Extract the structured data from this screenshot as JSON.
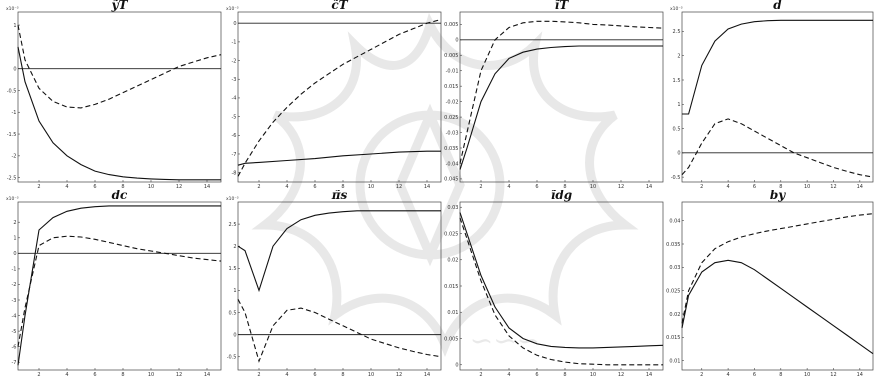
{
  "chart_data": [
    {
      "type": "line",
      "title": "ỹT",
      "exponent": "x10⁻³",
      "xticks": [
        2,
        4,
        6,
        8,
        10,
        12,
        14
      ],
      "yticks": [
        1,
        0,
        -0.5,
        -1,
        -1.5,
        -2,
        -2.5
      ],
      "ylim": [
        -2.6,
        1.3
      ],
      "xlim": [
        0.5,
        15
      ],
      "zero_line": 0,
      "series": [
        {
          "style": "solid",
          "x": [
            0.5,
            1,
            2,
            3,
            4,
            5,
            6,
            7,
            8,
            9,
            10,
            11,
            12,
            13,
            14,
            15
          ],
          "y": [
            0.5,
            -0.3,
            -1.2,
            -1.7,
            -2.0,
            -2.2,
            -2.35,
            -2.43,
            -2.48,
            -2.51,
            -2.53,
            -2.54,
            -2.55,
            -2.55,
            -2.55,
            -2.55
          ]
        },
        {
          "style": "dashed",
          "x": [
            0.5,
            1,
            2,
            3,
            4,
            5,
            6,
            7,
            8,
            9,
            10,
            11,
            12,
            13,
            14,
            15
          ],
          "y": [
            1.0,
            0.2,
            -0.45,
            -0.75,
            -0.88,
            -0.9,
            -0.82,
            -0.7,
            -0.55,
            -0.4,
            -0.25,
            -0.1,
            0.05,
            0.15,
            0.25,
            0.32
          ]
        }
      ]
    },
    {
      "type": "line",
      "title": "c̃T",
      "exponent": "x10⁻³",
      "xticks": [
        2,
        4,
        6,
        8,
        10,
        12,
        14
      ],
      "yticks": [
        0,
        -1,
        -2,
        -3,
        -4,
        -5,
        -6,
        -7,
        -8
      ],
      "ylim": [
        -8.5,
        0.6
      ],
      "xlim": [
        0.5,
        15
      ],
      "zero_line": 0,
      "series": [
        {
          "style": "solid",
          "x": [
            0.5,
            1,
            2,
            4,
            6,
            8,
            10,
            12,
            14,
            15
          ],
          "y": [
            -7.6,
            -7.5,
            -7.45,
            -7.35,
            -7.25,
            -7.1,
            -7.0,
            -6.9,
            -6.85,
            -6.85
          ]
        },
        {
          "style": "dashed",
          "x": [
            0.5,
            1,
            2,
            3,
            4,
            5,
            6,
            7,
            8,
            9,
            10,
            11,
            12,
            13,
            14,
            15
          ],
          "y": [
            -8.2,
            -7.5,
            -6.3,
            -5.3,
            -4.5,
            -3.8,
            -3.2,
            -2.7,
            -2.2,
            -1.8,
            -1.4,
            -1.0,
            -0.6,
            -0.3,
            0.0,
            0.2
          ]
        }
      ]
    },
    {
      "type": "line",
      "title": "ĩT",
      "exponent": "",
      "xticks": [
        2,
        4,
        6,
        8,
        10,
        12,
        14
      ],
      "yticks": [
        0.005,
        0,
        -0.005,
        -0.01,
        -0.015,
        -0.02,
        -0.025,
        -0.03,
        -0.035,
        -0.04,
        -0.045
      ],
      "ylim": [
        -0.046,
        0.009
      ],
      "xlim": [
        0.5,
        15
      ],
      "zero_line": 0,
      "series": [
        {
          "style": "solid",
          "x": [
            0.5,
            1,
            2,
            3,
            4,
            5,
            6,
            7,
            8,
            9,
            10,
            11,
            12,
            13,
            14,
            15
          ],
          "y": [
            -0.042,
            -0.035,
            -0.02,
            -0.011,
            -0.006,
            -0.004,
            -0.003,
            -0.0025,
            -0.0022,
            -0.002,
            -0.002,
            -0.002,
            -0.002,
            -0.002,
            -0.002,
            -0.002
          ]
        },
        {
          "style": "dashed",
          "x": [
            0.5,
            1,
            2,
            3,
            4,
            5,
            6,
            7,
            8,
            9,
            10,
            11,
            12,
            13,
            14,
            15
          ],
          "y": [
            -0.04,
            -0.03,
            -0.01,
            0.0,
            0.004,
            0.0055,
            0.006,
            0.006,
            0.0058,
            0.0055,
            0.005,
            0.0048,
            0.0045,
            0.0042,
            0.004,
            0.0038
          ]
        }
      ]
    },
    {
      "type": "line",
      "title": "d̃",
      "exponent": "x10⁻³",
      "xticks": [
        2,
        4,
        6,
        8,
        10,
        12,
        14
      ],
      "yticks": [
        2.5,
        2,
        1.5,
        1,
        0.5,
        0,
        -0.5
      ],
      "ylim": [
        -0.6,
        2.9
      ],
      "xlim": [
        0.5,
        15
      ],
      "zero_line": 0,
      "series": [
        {
          "style": "solid",
          "x": [
            0.5,
            1,
            2,
            3,
            4,
            5,
            6,
            7,
            8,
            9,
            10,
            11,
            12,
            13,
            14,
            15
          ],
          "y": [
            0.8,
            0.8,
            1.8,
            2.3,
            2.55,
            2.65,
            2.7,
            2.72,
            2.73,
            2.73,
            2.73,
            2.73,
            2.73,
            2.73,
            2.73,
            2.73
          ]
        },
        {
          "style": "dashed",
          "x": [
            0.5,
            1,
            2,
            3,
            4,
            5,
            6,
            7,
            8,
            9,
            10,
            11,
            12,
            13,
            14,
            15
          ],
          "y": [
            -0.45,
            -0.3,
            0.2,
            0.6,
            0.7,
            0.6,
            0.45,
            0.3,
            0.15,
            0.0,
            -0.1,
            -0.2,
            -0.3,
            -0.38,
            -0.45,
            -0.5
          ]
        }
      ]
    },
    {
      "type": "line",
      "title": "dc",
      "exponent": "x10⁻³",
      "xticks": [
        2,
        4,
        6,
        8,
        10,
        12,
        14
      ],
      "yticks": [
        2,
        1,
        0,
        -1,
        -2,
        -3,
        -4,
        -5,
        -6,
        -7
      ],
      "ylim": [
        -7.5,
        3.3
      ],
      "xlim": [
        0.5,
        15
      ],
      "zero_line": 0,
      "series": [
        {
          "style": "solid",
          "x": [
            0.5,
            1,
            2,
            3,
            4,
            5,
            6,
            7,
            8,
            9,
            10,
            11,
            12,
            13,
            14,
            15
          ],
          "y": [
            -7.2,
            -4.0,
            1.5,
            2.3,
            2.7,
            2.9,
            3.0,
            3.05,
            3.05,
            3.05,
            3.05,
            3.05,
            3.05,
            3.05,
            3.05,
            3.05
          ]
        },
        {
          "style": "dashed",
          "x": [
            0.5,
            1,
            2,
            3,
            4,
            5,
            6,
            7,
            8,
            9,
            10,
            11,
            12,
            13,
            14,
            15
          ],
          "y": [
            -6.0,
            -3.5,
            0.5,
            1.0,
            1.1,
            1.05,
            0.9,
            0.7,
            0.5,
            0.3,
            0.15,
            0.0,
            -0.15,
            -0.3,
            -0.4,
            -0.5
          ]
        }
      ]
    },
    {
      "type": "line",
      "title": "π̃s",
      "exponent": "x10⁻³",
      "xticks": [
        2,
        4,
        6,
        8,
        10,
        12,
        14
      ],
      "yticks": [
        2.5,
        2,
        1.5,
        1,
        0.5,
        0,
        -0.5
      ],
      "ylim": [
        -0.8,
        3.0
      ],
      "xlim": [
        0.5,
        15
      ],
      "zero_line": 0,
      "series": [
        {
          "style": "solid",
          "x": [
            0.5,
            1,
            2,
            3,
            4,
            5,
            6,
            7,
            8,
            9,
            10,
            11,
            12,
            13,
            14,
            15
          ],
          "y": [
            2.0,
            1.9,
            1.0,
            2.0,
            2.4,
            2.6,
            2.7,
            2.75,
            2.78,
            2.8,
            2.8,
            2.8,
            2.8,
            2.8,
            2.8,
            2.8
          ]
        },
        {
          "style": "dashed",
          "x": [
            0.5,
            1,
            2,
            3,
            4,
            5,
            6,
            7,
            8,
            9,
            10,
            11,
            12,
            13,
            14,
            15
          ],
          "y": [
            0.8,
            0.5,
            -0.6,
            0.2,
            0.55,
            0.6,
            0.5,
            0.35,
            0.2,
            0.05,
            -0.1,
            -0.2,
            -0.3,
            -0.38,
            -0.45,
            -0.5
          ]
        }
      ]
    },
    {
      "type": "line",
      "title": "ĩdg",
      "exponent": "",
      "xticks": [
        2,
        4,
        6,
        8,
        10,
        12,
        14
      ],
      "yticks": [
        0.03,
        0.025,
        0.02,
        0.015,
        0.01,
        0.005,
        0
      ],
      "ylim": [
        -0.001,
        0.031
      ],
      "xlim": [
        0.5,
        15
      ],
      "zero_line": null,
      "series": [
        {
          "style": "solid",
          "x": [
            0.5,
            1,
            2,
            3,
            4,
            5,
            6,
            7,
            8,
            9,
            10,
            11,
            12,
            13,
            14,
            15
          ],
          "y": [
            0.029,
            0.025,
            0.017,
            0.011,
            0.007,
            0.005,
            0.004,
            0.0035,
            0.0033,
            0.0032,
            0.0032,
            0.0033,
            0.0034,
            0.0035,
            0.0036,
            0.0037
          ]
        },
        {
          "style": "dashed",
          "x": [
            0.5,
            1,
            2,
            3,
            4,
            5,
            6,
            7,
            8,
            9,
            10,
            11,
            12,
            13,
            14,
            15
          ],
          "y": [
            0.028,
            0.024,
            0.016,
            0.0095,
            0.0055,
            0.0032,
            0.0018,
            0.001,
            0.0005,
            0.0002,
            0.0001,
            0.0,
            0.0,
            0.0,
            0.0,
            0.0
          ]
        }
      ]
    },
    {
      "type": "line",
      "title": "by",
      "exponent": "",
      "xticks": [
        2,
        4,
        6,
        8,
        10,
        12,
        14
      ],
      "yticks": [
        0.04,
        0.035,
        0.03,
        0.025,
        0.02,
        0.015,
        0.01
      ],
      "ylim": [
        0.008,
        0.044
      ],
      "xlim": [
        0.5,
        15
      ],
      "zero_line": null,
      "series": [
        {
          "style": "solid",
          "x": [
            0.5,
            1,
            2,
            3,
            4,
            5,
            6,
            7,
            8,
            9,
            10,
            11,
            12,
            13,
            14,
            15
          ],
          "y": [
            0.017,
            0.024,
            0.029,
            0.031,
            0.0315,
            0.031,
            0.0295,
            0.0275,
            0.0255,
            0.0235,
            0.0215,
            0.0195,
            0.0175,
            0.0155,
            0.0135,
            0.0115
          ]
        },
        {
          "style": "dashed",
          "x": [
            0.5,
            1,
            2,
            3,
            4,
            5,
            6,
            7,
            8,
            9,
            10,
            11,
            12,
            13,
            14,
            15
          ],
          "y": [
            0.018,
            0.025,
            0.031,
            0.034,
            0.0355,
            0.0365,
            0.0372,
            0.0378,
            0.0383,
            0.0388,
            0.0393,
            0.0398,
            0.0403,
            0.0408,
            0.0412,
            0.0415
          ]
        }
      ]
    }
  ]
}
